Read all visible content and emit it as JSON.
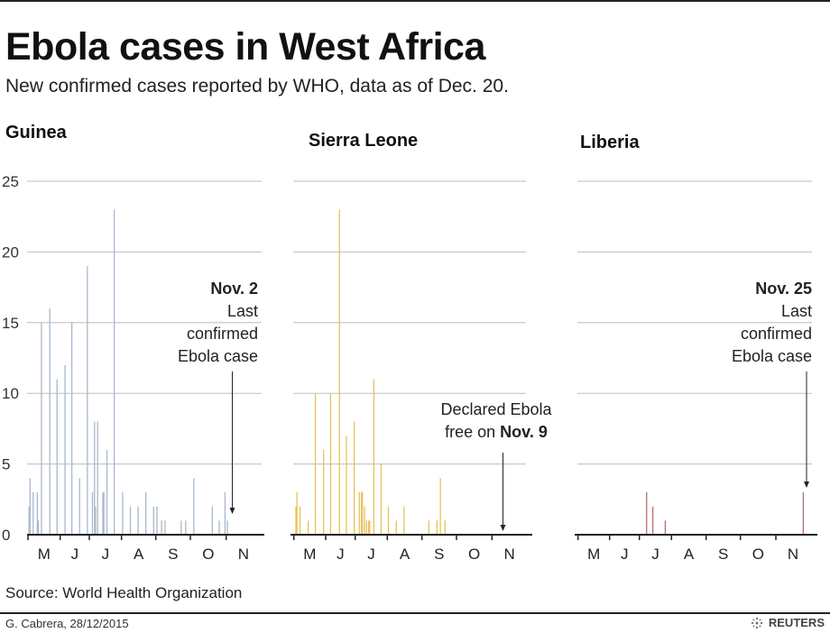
{
  "header": {
    "title": "Ebola cases in West Africa",
    "subtitle": "New confirmed cases reported by WHO, data as of Dec. 20."
  },
  "footer": {
    "source": "Source: World Health Organization",
    "credit": "G. Cabrera, 28/12/2015",
    "logo": "REUTERS"
  },
  "chart_data": [
    {
      "type": "bar",
      "title": "Guinea",
      "color": "#a9b8cc",
      "ylim": [
        0,
        25
      ],
      "yticks": [
        0,
        5,
        10,
        15,
        20,
        25
      ],
      "xticks": [
        "M",
        "J",
        "J",
        "A",
        "S",
        "O",
        "N"
      ],
      "grid": true,
      "annotation": {
        "bold": "Nov. 2",
        "lines": [
          "Last",
          "confirmed",
          "Ebola case"
        ]
      },
      "x": [
        "2015-05-02",
        "2015-05-03",
        "2015-05-06",
        "2015-05-10",
        "2015-05-11",
        "2015-05-14",
        "2015-05-22",
        "2015-05-29",
        "2015-06-06",
        "2015-06-13",
        "2015-06-21",
        "2015-06-29",
        "2015-07-04",
        "2015-07-06",
        "2015-07-07",
        "2015-07-09",
        "2015-07-14",
        "2015-07-15",
        "2015-07-18",
        "2015-07-25",
        "2015-08-02",
        "2015-08-09",
        "2015-08-16",
        "2015-08-23",
        "2015-08-30",
        "2015-09-02",
        "2015-09-06",
        "2015-09-09",
        "2015-09-23",
        "2015-09-27",
        "2015-10-04",
        "2015-10-20",
        "2015-10-26",
        "2015-10-31",
        "2015-11-02"
      ],
      "values": [
        2,
        4,
        3,
        3,
        1,
        15,
        16,
        11,
        12,
        15,
        4,
        19,
        3,
        8,
        2,
        8,
        3,
        3,
        6,
        23,
        3,
        2,
        2,
        3,
        2,
        2,
        1,
        1,
        1,
        1,
        4,
        2,
        1,
        3,
        1
      ]
    },
    {
      "type": "bar",
      "title": "Sierra Leone",
      "color": "#e8c15a",
      "ylim": [
        0,
        25
      ],
      "xticks": [
        "M",
        "J",
        "J",
        "A",
        "S",
        "O",
        "N"
      ],
      "grid": true,
      "annotation": {
        "lines": [
          "Declared Ebola"
        ],
        "prefix": "free on ",
        "bold": "Nov. 9"
      },
      "x": [
        "2015-05-03",
        "2015-05-04",
        "2015-05-07",
        "2015-05-15",
        "2015-05-22",
        "2015-05-30",
        "2015-06-06",
        "2015-06-15",
        "2015-06-22",
        "2015-06-30",
        "2015-07-05",
        "2015-07-07",
        "2015-07-08",
        "2015-07-10",
        "2015-07-12",
        "2015-07-14",
        "2015-07-15",
        "2015-07-19",
        "2015-07-26",
        "2015-08-02",
        "2015-08-09",
        "2015-08-16",
        "2015-09-07",
        "2015-09-14",
        "2015-09-17",
        "2015-09-21"
      ],
      "values": [
        2,
        3,
        2,
        1,
        10,
        6,
        10,
        23,
        7,
        8,
        3,
        3,
        3,
        2,
        1,
        1,
        1,
        11,
        5,
        2,
        1,
        2,
        1,
        1,
        4,
        1
      ]
    },
    {
      "type": "bar",
      "title": "Liberia",
      "color": "#b5706f",
      "ylim": [
        0,
        25
      ],
      "xticks": [
        "M",
        "J",
        "J",
        "A",
        "S",
        "O",
        "N"
      ],
      "grid": true,
      "annotation": {
        "bold": "Nov. 25",
        "lines": [
          "Last",
          "confirmed",
          "Ebola case"
        ]
      },
      "x": [
        "2015-07-08",
        "2015-07-14",
        "2015-07-26",
        "2015-11-25"
      ],
      "values": [
        3,
        2,
        1,
        3
      ]
    }
  ]
}
